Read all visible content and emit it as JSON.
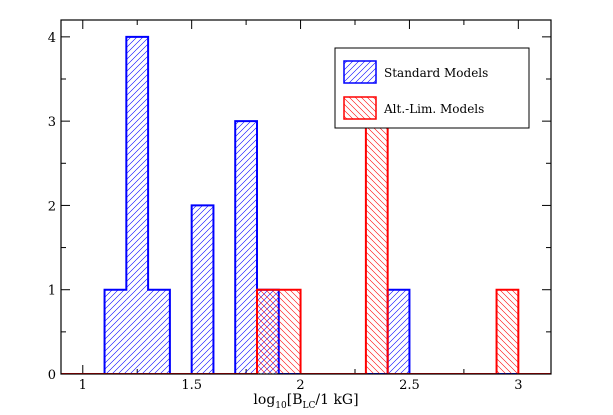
{
  "chart_data": {
    "type": "histogram",
    "xlabel_parts": {
      "log": "log",
      "base": "10",
      "open": "[B",
      "sub": "LC",
      "tail": "/1 kG]"
    },
    "ylabel": "",
    "xlim": [
      0.9,
      3.15
    ],
    "ylim": [
      0,
      4.2
    ],
    "x_ticks": [
      1,
      1.5,
      2,
      2.5,
      3
    ],
    "x_tick_labels": [
      "1",
      "1.5",
      "2",
      "2.5",
      "3"
    ],
    "y_ticks": [
      0,
      1,
      2,
      3,
      4
    ],
    "y_tick_labels": [
      "0",
      "1",
      "2",
      "3",
      "4"
    ],
    "bin_width": 0.1,
    "series": [
      {
        "name": "Standard Models",
        "color": "#0000ff",
        "bins": [
          {
            "x0": 1.1,
            "count": 1
          },
          {
            "x0": 1.2,
            "count": 4
          },
          {
            "x0": 1.3,
            "count": 1
          },
          {
            "x0": 1.5,
            "count": 2
          },
          {
            "x0": 1.7,
            "count": 3
          },
          {
            "x0": 1.8,
            "count": 1
          },
          {
            "x0": 2.4,
            "count": 1
          }
        ]
      },
      {
        "name": "Alt.-Lim. Models",
        "color": "#ff0000",
        "bins": [
          {
            "x0": 1.8,
            "count": 1
          },
          {
            "x0": 1.9,
            "count": 1
          },
          {
            "x0": 2.3,
            "count": 3
          },
          {
            "x0": 2.9,
            "count": 1
          }
        ]
      }
    ],
    "legend": {
      "position": "top-right",
      "entries": [
        "Standard Models",
        "Alt.-Lim. Models"
      ]
    }
  }
}
